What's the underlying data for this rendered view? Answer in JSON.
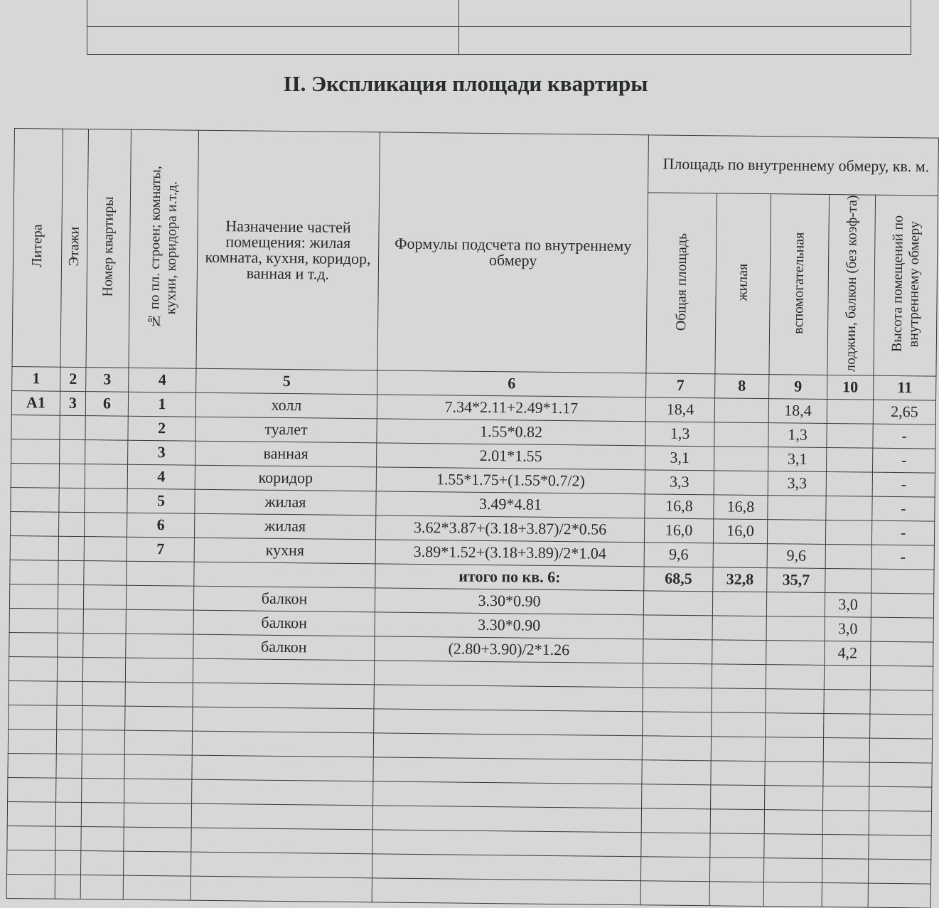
{
  "title": "II. Экспликация площади квартиры",
  "headers": {
    "c1": "Литера",
    "c2": "Этажи",
    "c3": "Номер квартиры",
    "c4": "№ по пл. строен; комнаты, кухни, коридора и.т.д.",
    "c5": "Назначение частей помещения: жилая комната, кухня, коридор, ванная и т.д.",
    "c6": "Формулы подсчета по внутреннему обмеру",
    "area_group": "Площадь по внутреннему обмеру, кв. м.",
    "c7": "Общая площадь",
    "c8": "жилая",
    "c9": "вспомогательная",
    "c10": "лоджии, балкон (без коэф-та)",
    "c11": "Высота помещений по внутреннему обмеру"
  },
  "column_numbers": [
    "1",
    "2",
    "3",
    "4",
    "5",
    "6",
    "7",
    "8",
    "9",
    "10",
    "11"
  ],
  "rows": [
    {
      "litera": "А1",
      "floor": "3",
      "apt": "6",
      "no": "1",
      "name": "холл",
      "formula": "7.34*2.11+2.49*1.17",
      "total": "18,4",
      "living": "",
      "aux": "18,4",
      "balcony": "",
      "height": "2,65"
    },
    {
      "litera": "",
      "floor": "",
      "apt": "",
      "no": "2",
      "name": "туалет",
      "formula": "1.55*0.82",
      "total": "1,3",
      "living": "",
      "aux": "1,3",
      "balcony": "",
      "height": "-"
    },
    {
      "litera": "",
      "floor": "",
      "apt": "",
      "no": "3",
      "name": "ванная",
      "formula": "2.01*1.55",
      "total": "3,1",
      "living": "",
      "aux": "3,1",
      "balcony": "",
      "height": "-"
    },
    {
      "litera": "",
      "floor": "",
      "apt": "",
      "no": "4",
      "name": "коридор",
      "formula": "1.55*1.75+(1.55*0.7/2)",
      "total": "3,3",
      "living": "",
      "aux": "3,3",
      "balcony": "",
      "height": "-"
    },
    {
      "litera": "",
      "floor": "",
      "apt": "",
      "no": "5",
      "name": "жилая",
      "formula": "3.49*4.81",
      "total": "16,8",
      "living": "16,8",
      "aux": "",
      "balcony": "",
      "height": "-"
    },
    {
      "litera": "",
      "floor": "",
      "apt": "",
      "no": "6",
      "name": "жилая",
      "formula": "3.62*3.87+(3.18+3.87)/2*0.56",
      "total": "16,0",
      "living": "16,0",
      "aux": "",
      "balcony": "",
      "height": "-"
    },
    {
      "litera": "",
      "floor": "",
      "apt": "",
      "no": "7",
      "name": "кухня",
      "formula": "3.89*1.52+(3.18+3.89)/2*1.04",
      "total": "9,6",
      "living": "",
      "aux": "9,6",
      "balcony": "",
      "height": "-"
    },
    {
      "litera": "",
      "floor": "",
      "apt": "",
      "no": "",
      "name": "",
      "formula": "итого по кв. 6:",
      "total": "68,5",
      "living": "32,8",
      "aux": "35,7",
      "balcony": "",
      "height": ""
    },
    {
      "litera": "",
      "floor": "",
      "apt": "",
      "no": "",
      "name": "балкон",
      "formula": "3.30*0.90",
      "total": "",
      "living": "",
      "aux": "",
      "balcony": "3,0",
      "height": ""
    },
    {
      "litera": "",
      "floor": "",
      "apt": "",
      "no": "",
      "name": "балкон",
      "formula": "3.30*0.90",
      "total": "",
      "living": "",
      "aux": "",
      "balcony": "3,0",
      "height": ""
    },
    {
      "litera": "",
      "floor": "",
      "apt": "",
      "no": "",
      "name": "балкон",
      "formula": "(2.80+3.90)/2*1.26",
      "total": "",
      "living": "",
      "aux": "",
      "balcony": "4,2",
      "height": ""
    }
  ],
  "empty_rows": 10
}
